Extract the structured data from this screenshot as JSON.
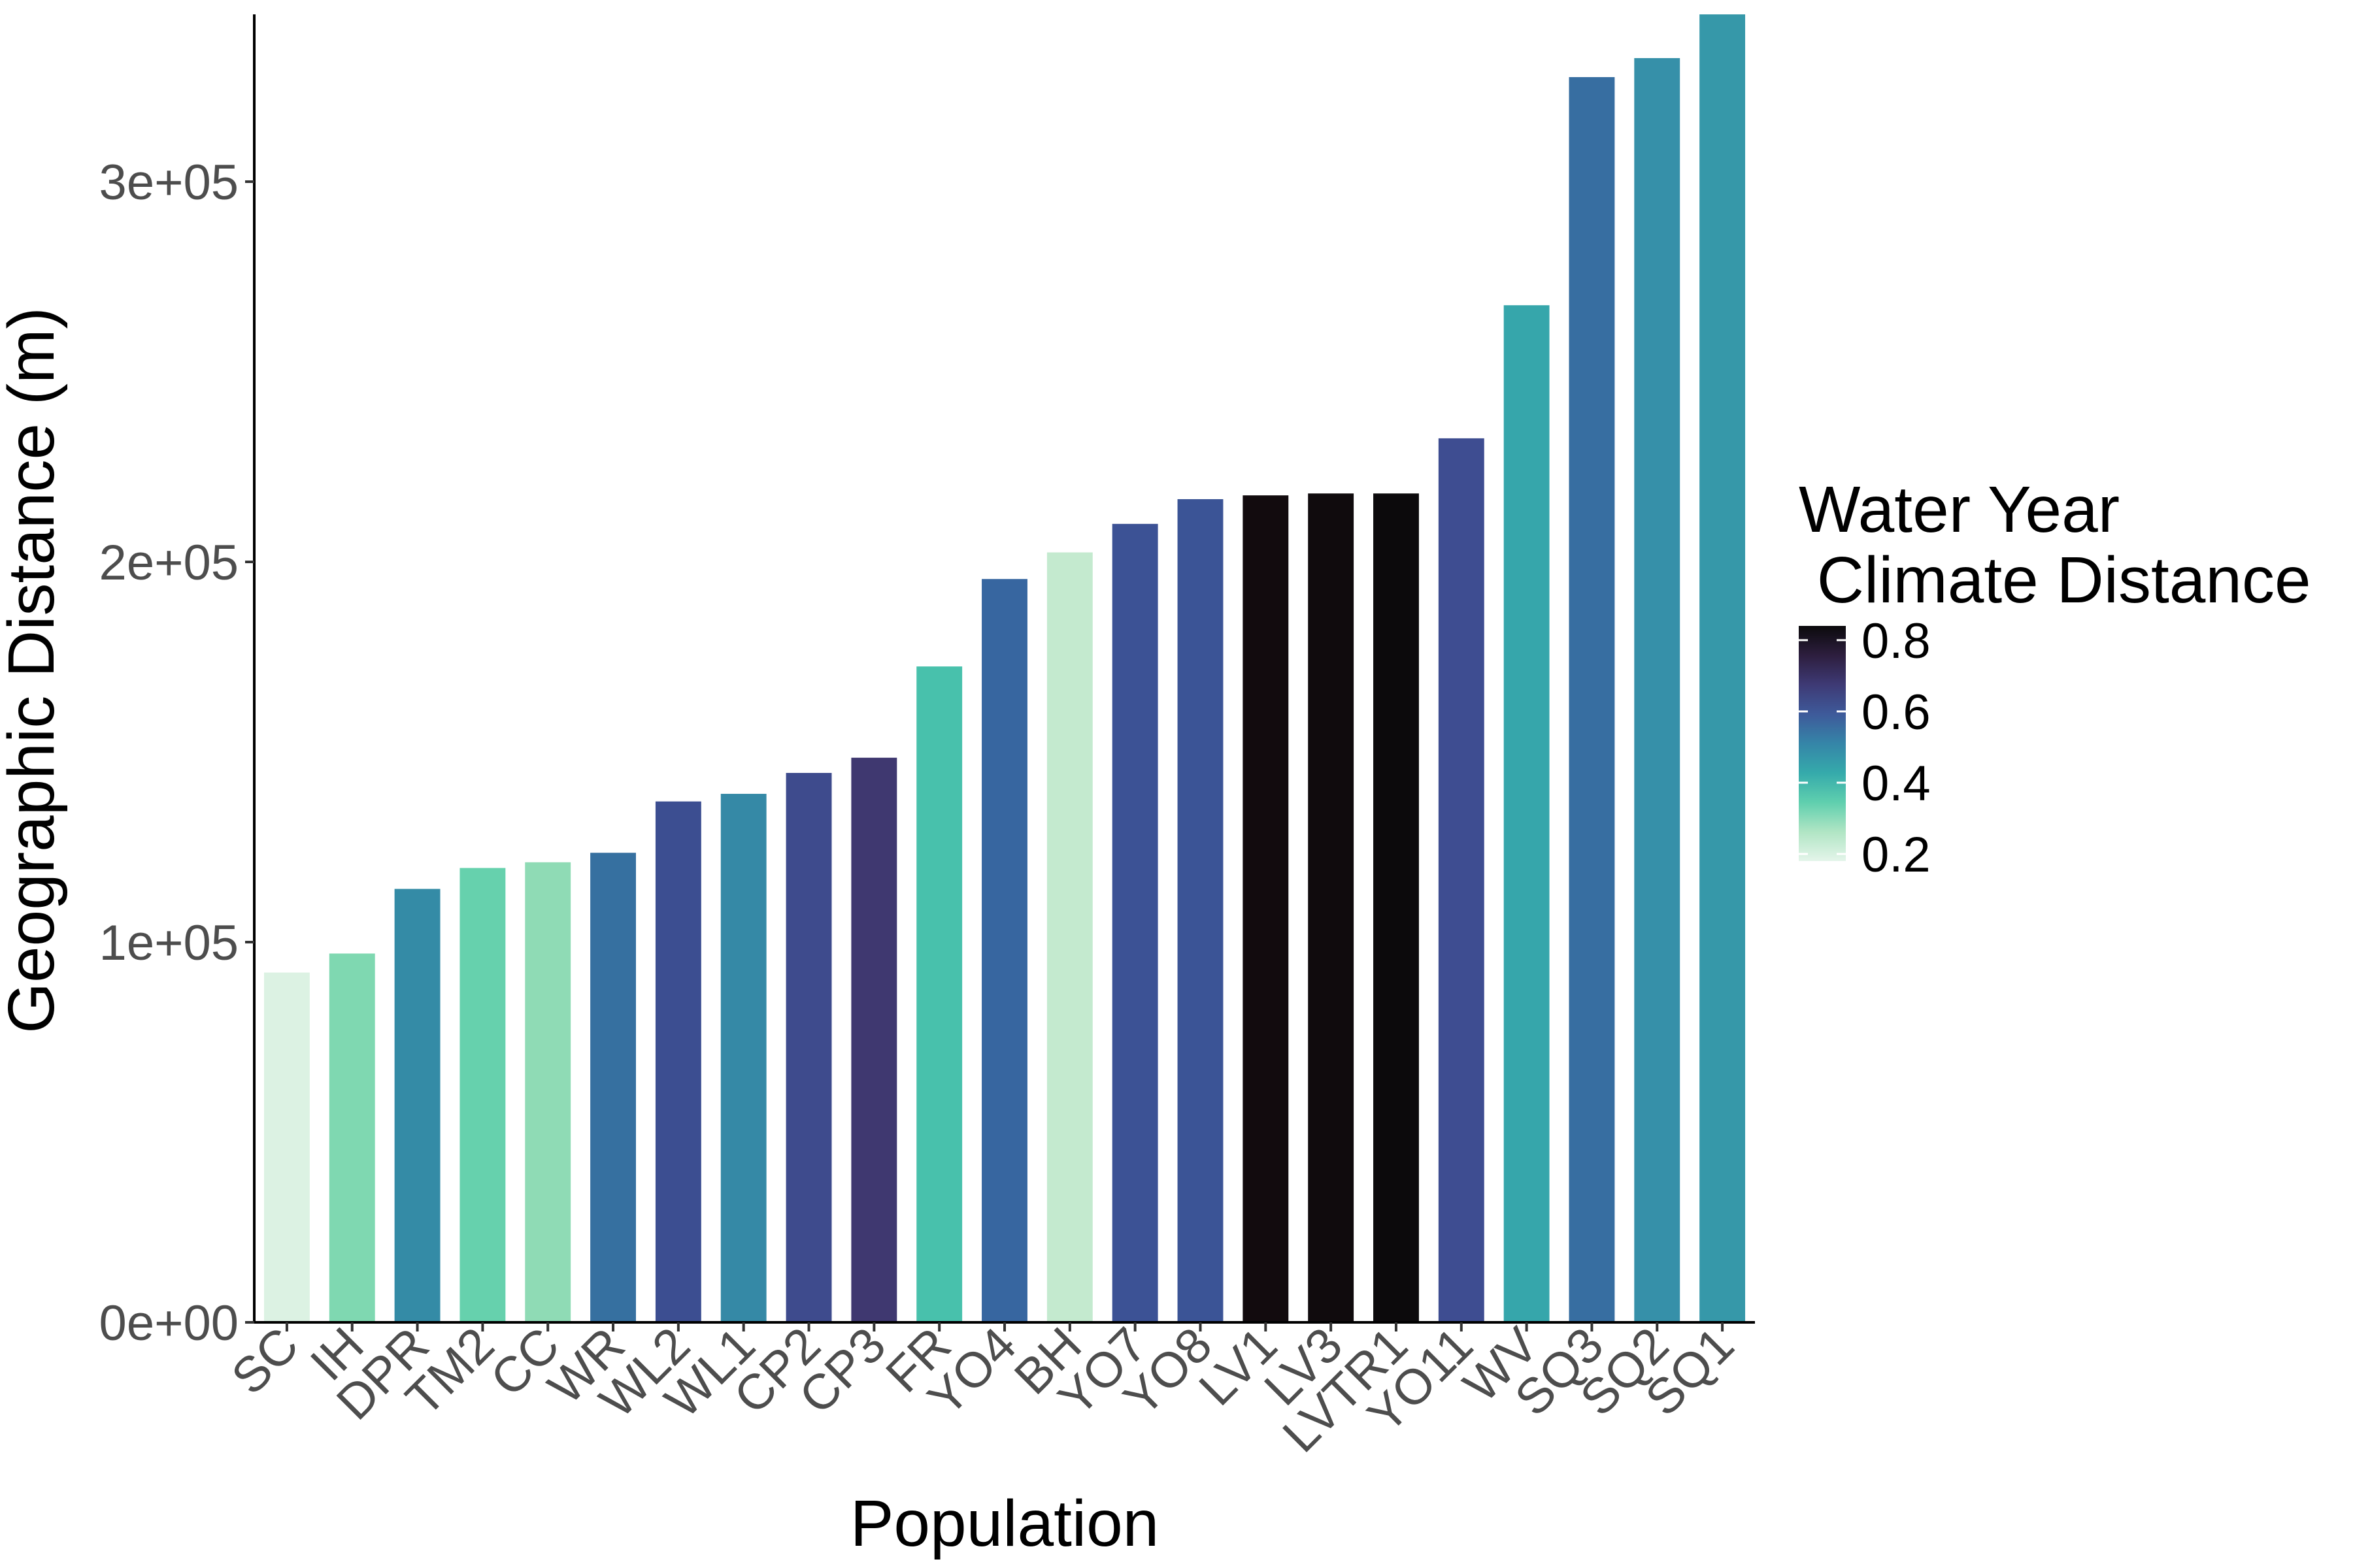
{
  "chart_data": {
    "type": "bar",
    "xlabel": "Population",
    "ylabel": "Geographic Distance (m)",
    "ylim": [
      0,
      344000
    ],
    "y_ticks": [
      0,
      100000,
      200000,
      300000
    ],
    "y_tick_labels": [
      "0e+00",
      "1e+05",
      "2e+05",
      "3e+05"
    ],
    "grid": false,
    "categories": [
      "SC",
      "IH",
      "DPR",
      "TM2",
      "CC",
      "WR",
      "WL2",
      "WL1",
      "CP2",
      "CP3",
      "FR",
      "YO4",
      "BH",
      "YO7",
      "YO8",
      "LV1",
      "LV3",
      "LVTR1",
      "YO11",
      "WV",
      "SQ3",
      "SQ2",
      "SQ1"
    ],
    "values": [
      92000,
      97000,
      114000,
      119500,
      121000,
      123500,
      137000,
      139000,
      144500,
      148500,
      172500,
      195500,
      202500,
      210000,
      216500,
      217500,
      218000,
      218000,
      232500,
      267500,
      327500,
      332500,
      344000
    ],
    "color_values": [
      0.19,
      0.32,
      0.48,
      0.33,
      0.29,
      0.55,
      0.63,
      0.48,
      0.64,
      0.71,
      0.38,
      0.56,
      0.23,
      0.62,
      0.6,
      0.81,
      0.81,
      0.83,
      0.63,
      0.44,
      0.55,
      0.47,
      0.45
    ],
    "bar_colors": [
      "#dcf2e3",
      "#7fd8b1",
      "#348ba6",
      "#66d1ad",
      "#8fdbb5",
      "#3670a0",
      "#3c4e91",
      "#3589a6",
      "#3e4b8d",
      "#3f3870",
      "#48c1ac",
      "#3766a0",
      "#c4eacf",
      "#3c5295",
      "#3b5496",
      "#120b0e",
      "#100b0d",
      "#0c0a0c",
      "#3e4d91",
      "#36a6ab",
      "#376ea1",
      "#3690a9",
      "#3698a9"
    ],
    "legend": {
      "title_line1": "Water Year",
      "title_line2": " Climate Distance",
      "labels": [
        "0.8",
        "0.6",
        "0.4",
        "0.2"
      ],
      "values": [
        0.8,
        0.6,
        0.4,
        0.2
      ],
      "range": [
        0.18,
        0.84
      ],
      "gradient_colors": [
        "#0b0a0c",
        "#2d1e3e",
        "#3e3a75",
        "#3e5a9a",
        "#3585a8",
        "#35aaab",
        "#5fcfae",
        "#b0e5c4",
        "#e4f5ea"
      ],
      "placement": "right"
    }
  }
}
